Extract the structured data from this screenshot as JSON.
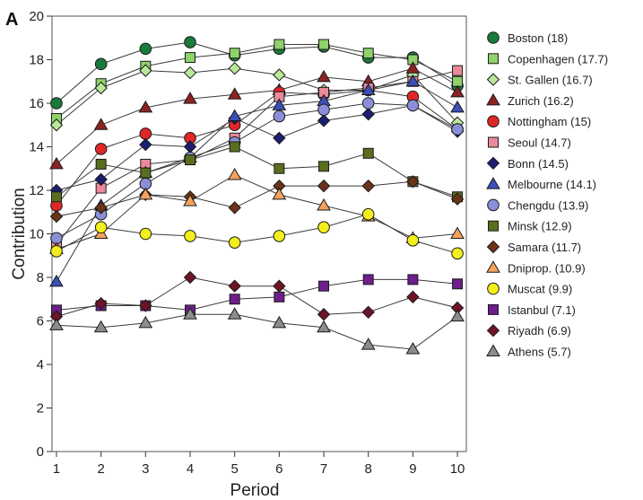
{
  "panel_label": "A",
  "chart_data": {
    "type": "line",
    "xlabel": "Period",
    "ylabel": "Contribution",
    "x": [
      1,
      2,
      3,
      4,
      5,
      6,
      7,
      8,
      9,
      10
    ],
    "xlim": [
      0.9,
      10.2
    ],
    "ylim": [
      0,
      20
    ],
    "yticks": [
      0,
      2,
      4,
      6,
      8,
      10,
      12,
      14,
      16,
      18,
      20
    ],
    "grid": false,
    "legend_position": "right",
    "series": [
      {
        "name": "Boston (18)",
        "marker": "circle",
        "color": "#1a7a3c",
        "values": [
          16.0,
          17.8,
          18.5,
          18.8,
          18.2,
          18.5,
          18.6,
          18.1,
          18.1,
          16.8
        ]
      },
      {
        "name": "Copenhagen (17.7)",
        "marker": "square",
        "color": "#8fd16a",
        "values": [
          15.3,
          16.9,
          17.7,
          18.1,
          18.3,
          18.7,
          18.7,
          18.3,
          18.0,
          17.0
        ]
      },
      {
        "name": "St. Gallen (16.7)",
        "marker": "diamond",
        "color": "#b9e89b",
        "values": [
          15.0,
          16.7,
          17.5,
          17.4,
          17.6,
          17.3,
          16.6,
          16.6,
          17.3,
          15.1
        ]
      },
      {
        "name": "Zurich (16.2)",
        "marker": "triangle",
        "color": "#8b2323",
        "values": [
          13.2,
          15.0,
          15.8,
          16.2,
          16.4,
          16.6,
          17.2,
          17.0,
          17.6,
          16.5
        ]
      },
      {
        "name": "Nottingham (15)",
        "marker": "circle",
        "color": "#e02727",
        "values": [
          11.3,
          13.9,
          14.6,
          14.4,
          15.0,
          16.5,
          16.4,
          16.6,
          16.3,
          14.8
        ]
      },
      {
        "name": "Seoul (14.7)",
        "marker": "square",
        "color": "#eb8a9a",
        "values": [
          9.5,
          12.1,
          13.2,
          13.4,
          14.4,
          16.3,
          16.5,
          16.7,
          17.0,
          17.5
        ]
      },
      {
        "name": "Bonn (14.5)",
        "marker": "diamond",
        "color": "#1c1f6e",
        "values": [
          12.0,
          12.5,
          14.1,
          14.0,
          15.3,
          14.4,
          15.2,
          15.5,
          15.9,
          14.7
        ]
      },
      {
        "name": "Melbourne (14.1)",
        "marker": "triangle",
        "color": "#3a4fb8",
        "values": [
          7.8,
          11.3,
          12.8,
          13.5,
          15.4,
          15.9,
          16.1,
          16.6,
          17.0,
          15.8
        ]
      },
      {
        "name": "Chengdu (13.9)",
        "marker": "circle",
        "color": "#8b8fd8",
        "values": [
          9.8,
          10.9,
          12.3,
          13.5,
          14.2,
          15.4,
          15.7,
          16.0,
          15.9,
          14.8
        ]
      },
      {
        "name": "Minsk (12.9)",
        "marker": "square",
        "color": "#5a6e1e",
        "values": [
          11.7,
          13.2,
          12.8,
          13.4,
          14.0,
          13.0,
          13.1,
          13.7,
          12.4,
          11.7
        ]
      },
      {
        "name": "Samara (11.7)",
        "marker": "diamond",
        "color": "#6b3318",
        "values": [
          10.8,
          11.2,
          11.8,
          11.7,
          11.2,
          12.2,
          12.2,
          12.2,
          12.4,
          11.6
        ]
      },
      {
        "name": "Dniprop. (10.9)",
        "marker": "triangle",
        "color": "#f4a25e",
        "values": [
          9.3,
          10.0,
          11.8,
          11.5,
          12.7,
          11.8,
          11.3,
          10.8,
          9.8,
          10.0
        ]
      },
      {
        "name": "Muscat (9.9)",
        "marker": "circle",
        "color": "#f2ef1c",
        "values": [
          9.2,
          10.3,
          10.0,
          9.9,
          9.6,
          9.9,
          10.3,
          10.9,
          9.7,
          9.1
        ]
      },
      {
        "name": "Istanbul (7.1)",
        "marker": "square",
        "color": "#6e1e8a",
        "values": [
          6.5,
          6.7,
          6.7,
          6.5,
          7.0,
          7.1,
          7.6,
          7.9,
          7.9,
          7.7
        ]
      },
      {
        "name": "Riyadh (6.9)",
        "marker": "diamond",
        "color": "#6e1426",
        "values": [
          6.2,
          6.8,
          6.7,
          8.0,
          7.6,
          7.6,
          6.3,
          6.4,
          7.1,
          6.6
        ]
      },
      {
        "name": "Athens (5.7)",
        "marker": "triangle",
        "color": "#8c8c8c",
        "values": [
          5.8,
          5.7,
          5.9,
          6.3,
          6.3,
          5.9,
          5.7,
          4.9,
          4.7,
          6.2
        ]
      }
    ]
  }
}
